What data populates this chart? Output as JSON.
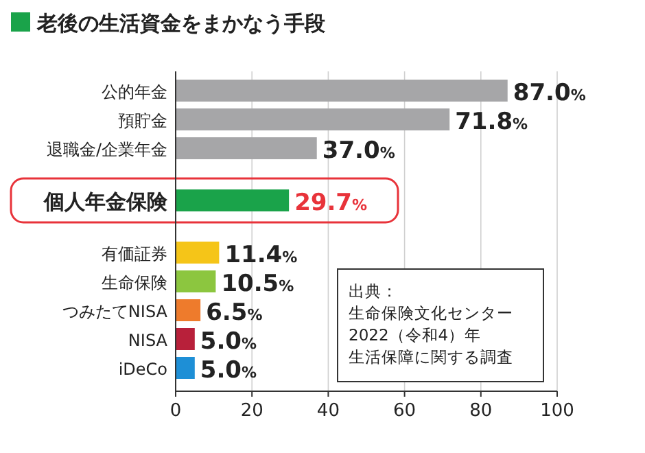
{
  "chart_data": {
    "type": "bar",
    "orientation": "horizontal",
    "title": "老後の生活資金をまかなう手段",
    "categories": [
      "公的年金",
      "預貯金",
      "退職金/企業年金",
      "個人年金保険",
      "有価証券",
      "生命保険",
      "つみたてNISA",
      "NISA",
      "iDeCo"
    ],
    "values": [
      87.0,
      71.8,
      37.0,
      29.7,
      11.4,
      10.5,
      6.5,
      5.0,
      5.0
    ],
    "value_labels": [
      "87.0%",
      "71.8%",
      "37.0%",
      "29.7%",
      "11.4%",
      "10.5%",
      "6.5%",
      "5.0%",
      "5.0%"
    ],
    "colors": [
      "#a6a6a8",
      "#a6a6a8",
      "#a6a6a8",
      "#1aa34a",
      "#f5c518",
      "#8cc63f",
      "#ee7b2c",
      "#b8203a",
      "#1e8fd6"
    ],
    "xlim": [
      0,
      100
    ],
    "xticks": [
      0,
      20,
      40,
      60,
      80,
      100
    ],
    "grid": "x",
    "annotations": [
      "出典：",
      "生命保険文化センター",
      "2022（令和4）年",
      "生活保障に関する調査"
    ]
  }
}
